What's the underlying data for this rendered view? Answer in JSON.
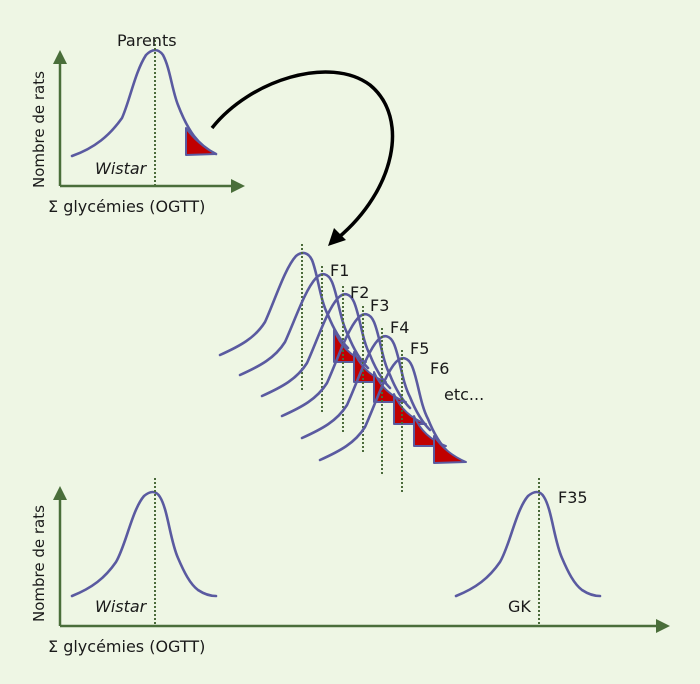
{
  "labels": {
    "parents": "Parents",
    "wistar_top": "Wistar",
    "ylabel_top": "Nombre de rats",
    "xlabel_top": "Σ glycémies (OGTT)",
    "generations": [
      "F1",
      "F2",
      "F3",
      "F4",
      "F5",
      "F6"
    ],
    "etc": "etc...",
    "ylabel_bottom": "Nombre de rats",
    "xlabel_bottom": "Σ glycémies (OGTT)",
    "wistar_bottom": "Wistar",
    "f35": "F35",
    "gk": "GK"
  },
  "colors": {
    "background": "#eef6e4",
    "axis": "#4a6e3a",
    "curve": "#5a5aa0",
    "selected_tail": "#c00000",
    "arrow": "#000000"
  }
}
